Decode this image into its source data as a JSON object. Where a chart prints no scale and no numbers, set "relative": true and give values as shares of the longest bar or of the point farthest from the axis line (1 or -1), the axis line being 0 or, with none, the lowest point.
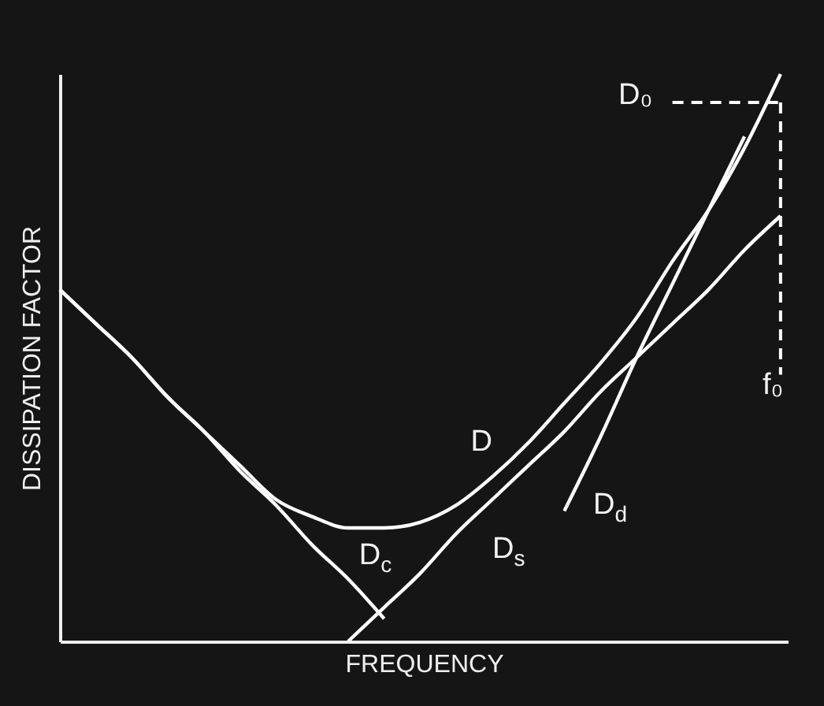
{
  "chart_data": {
    "type": "line",
    "relative": true,
    "xlabel": "FREQUENCY",
    "ylabel": "DISSIPATION FACTOR",
    "categories": [
      null,
      null,
      null,
      null,
      null,
      null,
      null,
      null,
      null,
      null,
      null,
      null,
      null,
      null,
      null,
      null,
      null,
      null,
      null,
      null,
      null
    ],
    "series": [
      {
        "name": "D",
        "color": "#ffffff",
        "values": [
          0.62,
          0.56,
          0.5,
          0.43,
          0.37,
          0.31,
          0.25,
          0.22,
          0.2,
          0.2,
          0.21,
          0.24,
          0.29,
          0.35,
          0.42,
          0.49,
          0.57,
          0.67,
          0.76,
          0.87,
          1
        ]
      },
      {
        "name": "D$_{c}$",
        "color": "#ffffff",
        "values": [
          0.62,
          0.56,
          0.5,
          0.43,
          0.37,
          0.3,
          0.24,
          0.17,
          0.11,
          0.04,
          null,
          null,
          null,
          null,
          null,
          null,
          null,
          null,
          null,
          null,
          null
        ]
      },
      {
        "name": "D$_{s}$",
        "color": "#ffffff",
        "values": [
          null,
          null,
          null,
          null,
          null,
          null,
          null,
          null,
          0,
          0.06,
          0.12,
          0.19,
          0.25,
          0.31,
          0.37,
          0.44,
          0.5,
          0.56,
          0.62,
          0.69,
          0.75
        ]
      },
      {
        "name": "D$_{d}$",
        "color": "#ffffff",
        "values": [
          null,
          null,
          null,
          null,
          null,
          null,
          null,
          null,
          null,
          null,
          null,
          null,
          null,
          null,
          0.23,
          0.36,
          0.5,
          0.63,
          0.76,
          0.89,
          null
        ]
      }
    ],
    "ref_lines": [
      {
        "axis": "y",
        "value": 0.95,
        "label": "D₀",
        "line_style": "dashed",
        "color": "#ffffff"
      }
    ],
    "annotations": [
      "f₀"
    ],
    "marker": "none",
    "line_style": "solid",
    "legend": false
  }
}
